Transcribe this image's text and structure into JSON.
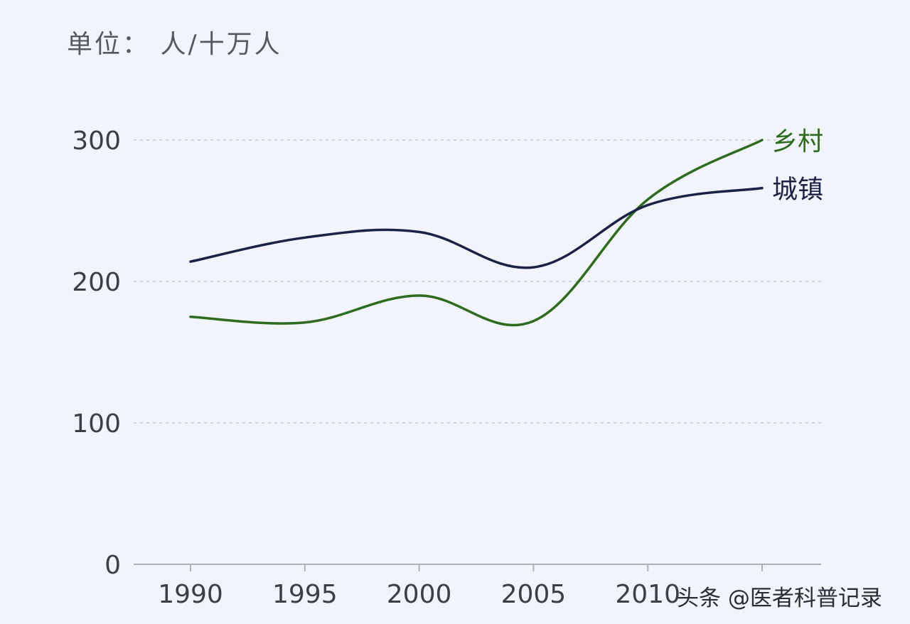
{
  "chart_data": {
    "type": "line",
    "unit_label": "单位： 人/十万人",
    "x": [
      1990,
      1995,
      2000,
      2005,
      2010,
      2015
    ],
    "x_tick_labels": [
      "1990",
      "1995",
      "2000",
      "2005",
      "2010",
      ""
    ],
    "y_ticks": [
      0,
      100,
      200,
      300
    ],
    "ylim": [
      0,
      300
    ],
    "grid": "horizontal dashed",
    "series": [
      {
        "name": "乡村",
        "color": "#2e6b1f",
        "values": [
          175,
          171,
          190,
          172,
          258,
          300
        ]
      },
      {
        "name": "城镇",
        "color": "#1c2246",
        "values": [
          214,
          231,
          235,
          210,
          254,
          266
        ]
      }
    ]
  },
  "watermark": "头条 @医者科普记录"
}
